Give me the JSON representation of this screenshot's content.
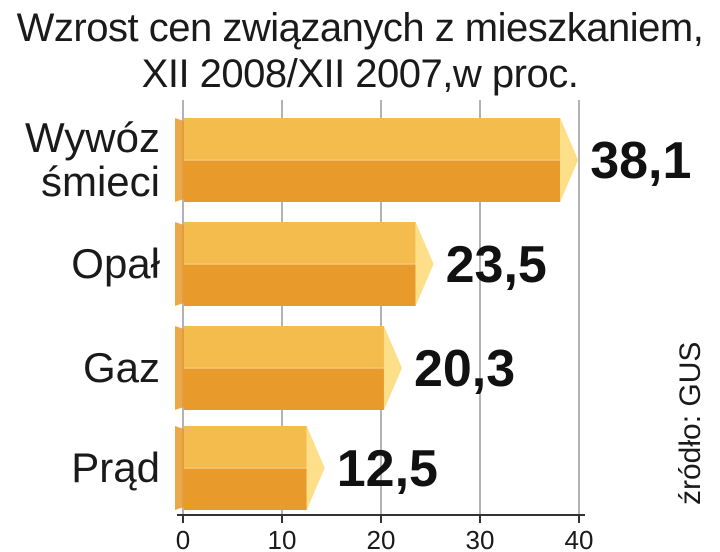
{
  "chart_data": {
    "type": "bar",
    "orientation": "horizontal",
    "title": "Wzrost cen związanych z mieszkaniem,",
    "subtitle": "XII 2008/XII 2007,w proc.",
    "categories": [
      {
        "lines": [
          "Wywóz",
          "śmieci"
        ]
      },
      {
        "lines": [
          "Opał"
        ]
      },
      {
        "lines": [
          "Gaz"
        ]
      },
      {
        "lines": [
          "Prąd"
        ]
      }
    ],
    "values": [
      38.1,
      23.5,
      20.3,
      12.5
    ],
    "value_labels": [
      "38,1",
      "23,5",
      "20,3",
      "12,5"
    ],
    "xlim": [
      0,
      40
    ],
    "xticks": [
      0,
      10,
      20,
      30,
      40
    ],
    "xtick_labels": [
      "0",
      "10",
      "20",
      "30",
      "40"
    ],
    "grid": "vertical",
    "source": "źródło: GUS",
    "colors": {
      "bar_top": "#f4bc4c",
      "bar_bottom": "#e89a2a",
      "bar_tip": "#fcdf88",
      "bar_edge": "#fff4d6",
      "grid": "#9a9a9a",
      "axis": "#333333"
    }
  }
}
